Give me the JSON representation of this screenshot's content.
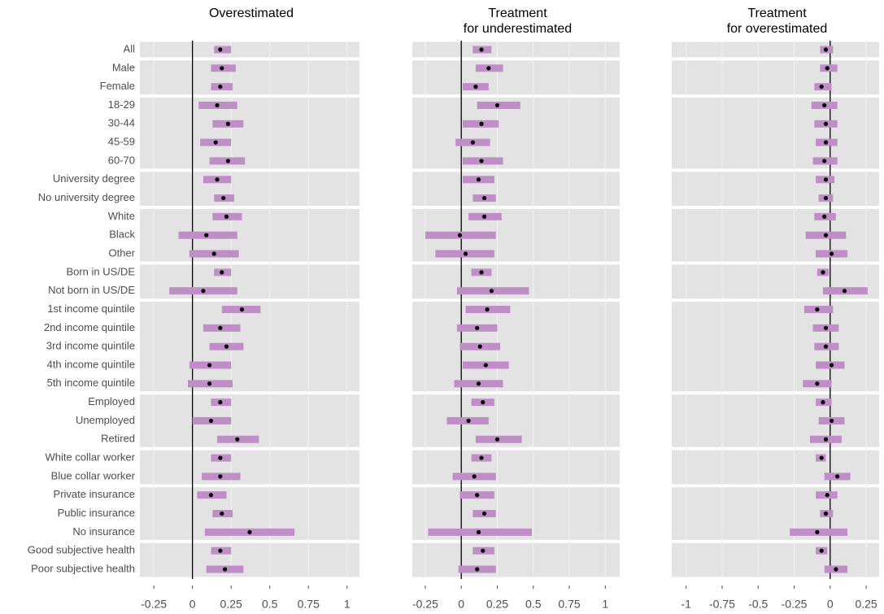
{
  "chart_data": {
    "type": "forest",
    "categories": [
      "All",
      "Male",
      "Female",
      "18-29",
      "30-44",
      "45-59",
      "60-70",
      "University degree",
      "No university degree",
      "White",
      "Black",
      "Other",
      "Born in US/DE",
      "Not born in US/DE",
      "1st income quintile",
      "2nd income quintile",
      "3rd income quintile",
      "4th income quintile",
      "5th income quintile",
      "Employed",
      "Unemployed",
      "Retired",
      "White collar worker",
      "Blue collar worker",
      "Private insurance",
      "Public insurance",
      "No insurance",
      "Good subjective health",
      "Poor subjective health"
    ],
    "color": "#bf8ec6",
    "point_color": "#000000",
    "grid": true,
    "panels": [
      {
        "title": [
          "Overestimated"
        ],
        "xlim": [
          -0.34,
          1.08
        ],
        "xticks": [
          -0.25,
          0,
          0.25,
          0.5,
          0.75,
          1
        ],
        "estimates": [
          0.18,
          0.19,
          0.18,
          0.16,
          0.23,
          0.15,
          0.23,
          0.16,
          0.2,
          0.22,
          0.09,
          0.14,
          0.19,
          0.07,
          0.32,
          0.18,
          0.22,
          0.11,
          0.11,
          0.18,
          0.12,
          0.29,
          0.18,
          0.18,
          0.12,
          0.19,
          0.37,
          0.18,
          0.21
        ],
        "lower": [
          0.14,
          0.12,
          0.12,
          0.04,
          0.13,
          0.05,
          0.11,
          0.07,
          0.14,
          0.13,
          -0.09,
          -0.02,
          0.14,
          -0.15,
          0.19,
          0.07,
          0.11,
          -0.02,
          -0.03,
          0.12,
          0,
          0.16,
          0.12,
          0.06,
          0.03,
          0.13,
          0.08,
          0.12,
          0.09
        ],
        "upper": [
          0.25,
          0.28,
          0.26,
          0.29,
          0.33,
          0.25,
          0.34,
          0.25,
          0.27,
          0.32,
          0.29,
          0.3,
          0.25,
          0.29,
          0.44,
          0.31,
          0.33,
          0.25,
          0.26,
          0.25,
          0.25,
          0.43,
          0.25,
          0.31,
          0.22,
          0.26,
          0.66,
          0.25,
          0.33
        ]
      },
      {
        "title": [
          "Treatment",
          "for underestimated"
        ],
        "xlim": [
          -0.34,
          1.1
        ],
        "xticks": [
          -0.25,
          0,
          0.25,
          0.5,
          0.75,
          1
        ],
        "estimates": [
          0.14,
          0.19,
          0.1,
          0.25,
          0.14,
          0.08,
          0.14,
          0.12,
          0.16,
          0.16,
          -0.01,
          0.03,
          0.14,
          0.21,
          0.18,
          0.11,
          0.13,
          0.17,
          0.12,
          0.15,
          0.05,
          0.25,
          0.14,
          0.09,
          0.11,
          0.16,
          0.12,
          0.15,
          0.11
        ],
        "lower": [
          0.08,
          0.1,
          0.01,
          0.11,
          0.01,
          -0.04,
          0.01,
          0.01,
          0.08,
          0.05,
          -0.25,
          -0.18,
          0.07,
          -0.03,
          0.03,
          -0.03,
          -0.01,
          0.01,
          -0.05,
          0.07,
          -0.1,
          0.1,
          0.07,
          -0.06,
          -0.01,
          0.08,
          -0.23,
          0.08,
          -0.02
        ],
        "upper": [
          0.21,
          0.29,
          0.19,
          0.41,
          0.26,
          0.2,
          0.29,
          0.23,
          0.24,
          0.28,
          0.24,
          0.23,
          0.21,
          0.47,
          0.34,
          0.25,
          0.27,
          0.33,
          0.29,
          0.23,
          0.19,
          0.42,
          0.21,
          0.24,
          0.23,
          0.24,
          0.49,
          0.23,
          0.24
        ]
      },
      {
        "title": [
          "Treatment",
          "for overestimated"
        ],
        "xlim": [
          -1.1,
          0.34
        ],
        "xticks": [
          -1,
          -0.75,
          -0.5,
          -0.25,
          0,
          0.25
        ],
        "estimates": [
          -0.03,
          -0.02,
          -0.06,
          -0.04,
          -0.03,
          -0.03,
          -0.04,
          -0.03,
          -0.03,
          -0.04,
          -0.03,
          0.01,
          -0.05,
          0.1,
          -0.09,
          -0.03,
          -0.03,
          0.01,
          -0.09,
          -0.05,
          0.01,
          -0.03,
          -0.06,
          0.05,
          -0.02,
          -0.03,
          -0.09,
          -0.06,
          0.04
        ],
        "lower": [
          -0.07,
          -0.07,
          -0.11,
          -0.13,
          -0.11,
          -0.1,
          -0.12,
          -0.1,
          -0.08,
          -0.11,
          -0.17,
          -0.1,
          -0.09,
          -0.05,
          -0.18,
          -0.12,
          -0.11,
          -0.1,
          -0.19,
          -0.1,
          -0.08,
          -0.14,
          -0.1,
          -0.04,
          -0.1,
          -0.07,
          -0.28,
          -0.1,
          -0.04
        ],
        "upper": [
          0.02,
          0.05,
          0.01,
          0.05,
          0.05,
          0.05,
          0.05,
          0.03,
          0.02,
          0.04,
          0.11,
          0.12,
          -0.01,
          0.26,
          0.02,
          0.06,
          0.06,
          0.1,
          0.01,
          0.01,
          0.1,
          0.08,
          -0.03,
          0.14,
          0.05,
          0.02,
          0.12,
          -0.02,
          0.12
        ]
      }
    ]
  }
}
